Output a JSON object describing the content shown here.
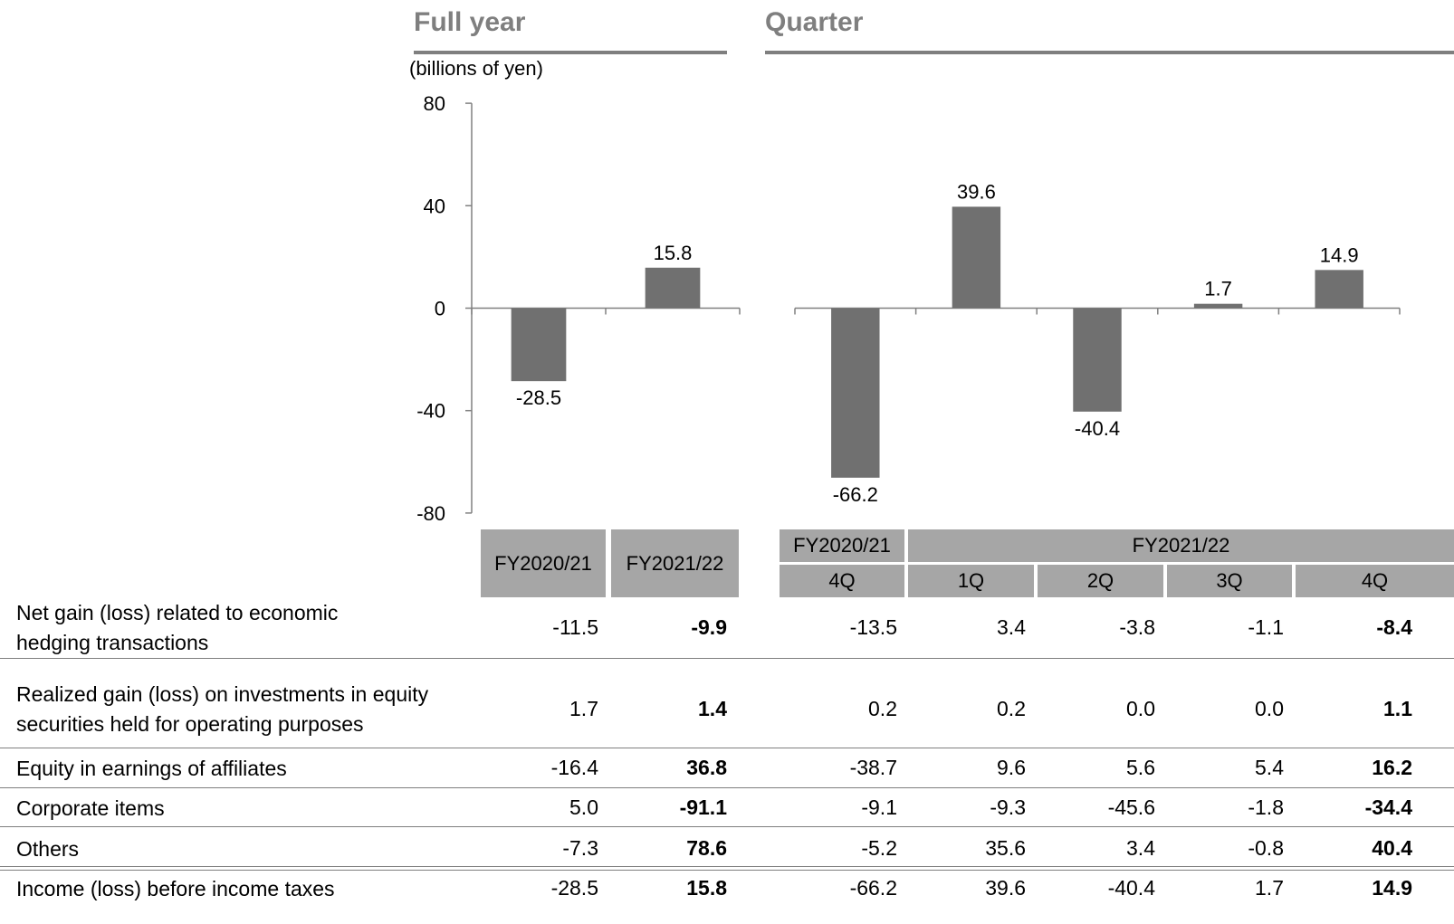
{
  "sections": {
    "full_year": "Full year",
    "quarter": "Quarter"
  },
  "units": "(billions of yen)",
  "colors": {
    "bar": "#707070",
    "header": "#a6a6a6",
    "title": "#7f7f7f"
  },
  "chart_data": [
    {
      "type": "bar",
      "title": "",
      "ylabel": "(billions of yen)",
      "ylim": [
        -80,
        80
      ],
      "yticks": [
        80,
        40,
        0,
        -40,
        -80
      ],
      "categories": [
        "FY2020/21",
        "FY2021/22"
      ],
      "values": [
        -28.5,
        15.8
      ],
      "labels": [
        "-28.5",
        "15.8"
      ]
    },
    {
      "type": "bar",
      "title": "",
      "ylim": [
        -80,
        80
      ],
      "categories": [
        "FY2020/21 4Q",
        "FY2021/22 1Q",
        "FY2021/22 2Q",
        "FY2021/22 3Q",
        "FY2021/22 4Q"
      ],
      "values": [
        -66.2,
        39.6,
        -40.4,
        1.7,
        14.9
      ],
      "labels": [
        "-66.2",
        "39.6",
        "-40.4",
        "1.7",
        "14.9"
      ]
    }
  ],
  "table": {
    "full_year_headers": [
      "FY2020/21",
      "FY2021/22"
    ],
    "quarter_group_headers": [
      "FY2020/21",
      "FY2021/22"
    ],
    "quarter_headers": [
      "4Q",
      "1Q",
      "2Q",
      "3Q",
      "4Q"
    ],
    "rows": [
      {
        "label": [
          "Net gain (loss) related to economic",
          "hedging transactions"
        ],
        "values": [
          "-11.5",
          "-9.9",
          "-13.5",
          "3.4",
          "-3.8",
          "-1.1",
          "-8.4"
        ]
      },
      {
        "label": [
          "Realized gain (loss) on investments in equity",
          "securities held for operating purposes"
        ],
        "values": [
          "1.7",
          "1.4",
          "0.2",
          "0.2",
          "0.0",
          "0.0",
          "1.1"
        ]
      },
      {
        "label": [
          "Equity in earnings of affiliates"
        ],
        "values": [
          "-16.4",
          "36.8",
          "-38.7",
          "9.6",
          "5.6",
          "5.4",
          "16.2"
        ]
      },
      {
        "label": [
          "Corporate items"
        ],
        "values": [
          "5.0",
          "-91.1",
          "-9.1",
          "-9.3",
          "-45.6",
          "-1.8",
          "-34.4"
        ]
      },
      {
        "label": [
          "Others"
        ],
        "values": [
          "-7.3",
          "78.6",
          "-5.2",
          "35.6",
          "3.4",
          "-0.8",
          "40.4"
        ]
      },
      {
        "label": [
          "Income (loss) before income taxes"
        ],
        "values": [
          "-28.5",
          "15.8",
          "-66.2",
          "39.6",
          "-40.4",
          "1.7",
          "14.9"
        ]
      }
    ]
  }
}
